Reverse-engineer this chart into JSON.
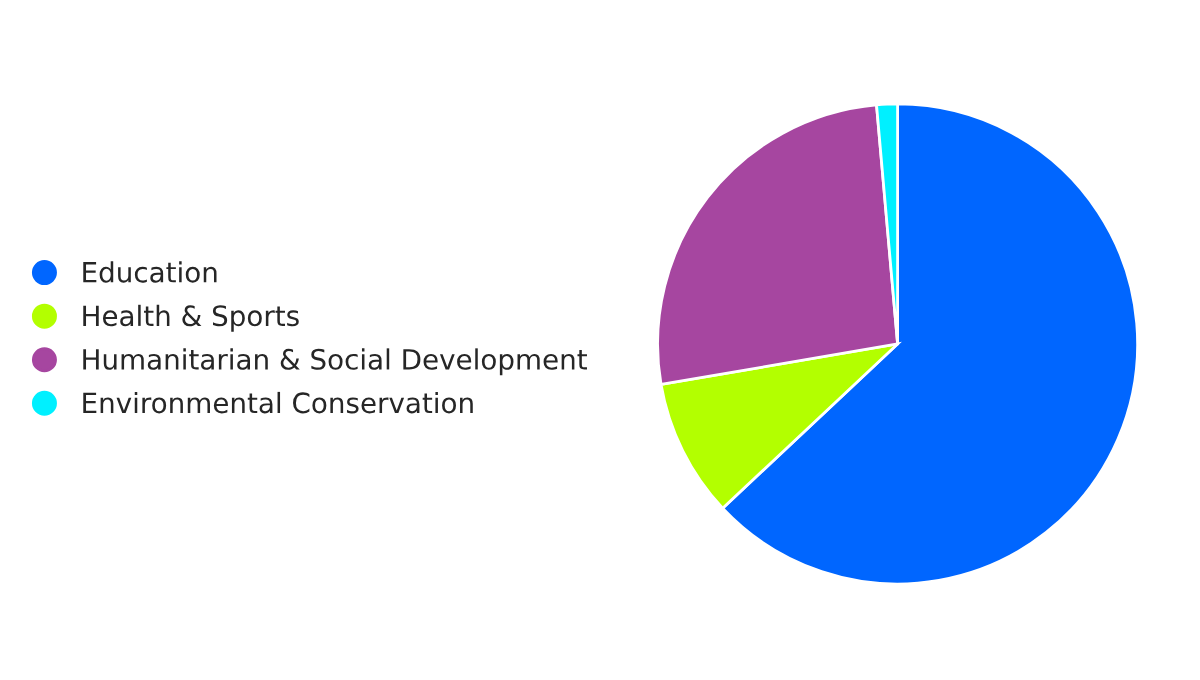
{
  "chart_data": {
    "type": "pie",
    "categories": [
      "Education",
      "Health & Sports",
      "Humanitarian & Social Development",
      "Environmental Conservation"
    ],
    "values": [
      63.0,
      9.3,
      26.3,
      1.4
    ],
    "colors": [
      "#0066ff",
      "#b3ff00",
      "#a646a0",
      "#00f0ff"
    ],
    "legend": "left",
    "marker": "circle"
  }
}
